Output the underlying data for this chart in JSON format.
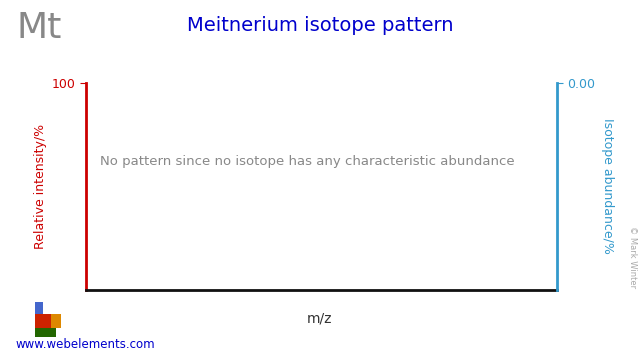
{
  "title": "Meitnerium isotope pattern",
  "element_symbol": "Mt",
  "xlabel": "m/z",
  "ylabel_left": "Relative intensity/%",
  "ylabel_right": "Isotope abundance/%",
  "no_data_text": "No pattern since no isotope has any characteristic abundance",
  "xlim": [
    0,
    1
  ],
  "ylim_left": [
    0,
    100
  ],
  "left_axis_color": "#cc0000",
  "right_axis_color": "#3399cc",
  "title_color": "#0000cc",
  "element_symbol_color": "#888888",
  "no_data_text_color": "#888888",
  "background_color": "#ffffff",
  "watermark": "© Mark Winter",
  "website": "www.webelements.com",
  "website_color": "#0000cc",
  "pt_blue": "#4466cc",
  "pt_red": "#cc2200",
  "pt_orange": "#dd8800",
  "pt_green": "#226600"
}
